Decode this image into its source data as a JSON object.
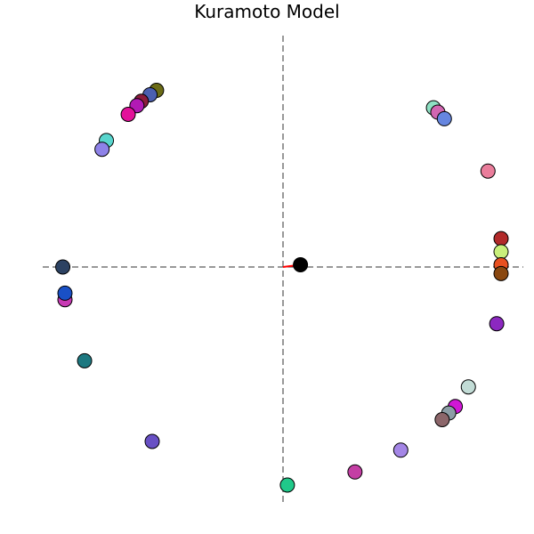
{
  "chart_data": {
    "type": "scatter",
    "title": "Kuramoto Model",
    "xlabel": "",
    "ylabel": "",
    "xlim": [
      -1.12,
      1.12
    ],
    "ylim": [
      -1.12,
      1.12
    ],
    "grid": false,
    "axes_visible": false,
    "crosshair": {
      "style": "dashed",
      "color": "#333333"
    },
    "order_parameter": {
      "x": 0.08,
      "y": 0.01,
      "color": "#000000",
      "vector_color": "#ff0000"
    },
    "oscillators": [
      {
        "x": -0.58,
        "y": 0.81,
        "color": "#6b6b16"
      },
      {
        "x": -0.61,
        "y": 0.79,
        "color": "#4b5fb0"
      },
      {
        "x": -0.65,
        "y": 0.76,
        "color": "#8c1c3c"
      },
      {
        "x": -0.67,
        "y": 0.74,
        "color": "#b21ab5"
      },
      {
        "x": -0.71,
        "y": 0.7,
        "color": "#e3119a"
      },
      {
        "x": -0.81,
        "y": 0.58,
        "color": "#58d5cd"
      },
      {
        "x": -0.83,
        "y": 0.54,
        "color": "#8e82e8"
      },
      {
        "x": 0.69,
        "y": 0.73,
        "color": "#8ee0c3"
      },
      {
        "x": 0.71,
        "y": 0.71,
        "color": "#d166b1"
      },
      {
        "x": 0.74,
        "y": 0.68,
        "color": "#6686e0"
      },
      {
        "x": 0.94,
        "y": 0.44,
        "color": "#ea7d9b"
      },
      {
        "x": 1.0,
        "y": 0.13,
        "color": "#b22a2a"
      },
      {
        "x": 1.0,
        "y": 0.07,
        "color": "#c9f07b"
      },
      {
        "x": 1.0,
        "y": 0.01,
        "color": "#e85020"
      },
      {
        "x": 1.0,
        "y": -0.03,
        "color": "#8a4810"
      },
      {
        "x": 0.98,
        "y": -0.26,
        "color": "#8c28c0"
      },
      {
        "x": 0.85,
        "y": -0.55,
        "color": "#c2dcd6"
      },
      {
        "x": 0.79,
        "y": -0.64,
        "color": "#d017d6"
      },
      {
        "x": 0.76,
        "y": -0.67,
        "color": "#8c9ea6"
      },
      {
        "x": 0.73,
        "y": -0.7,
        "color": "#8c666a"
      },
      {
        "x": 0.54,
        "y": -0.84,
        "color": "#a486e6"
      },
      {
        "x": 0.33,
        "y": -0.94,
        "color": "#c43ea4"
      },
      {
        "x": 0.02,
        "y": -1.0,
        "color": "#20c98a"
      },
      {
        "x": -0.6,
        "y": -0.8,
        "color": "#6850c4"
      },
      {
        "x": -0.91,
        "y": -0.43,
        "color": "#1d7880"
      },
      {
        "x": -1.0,
        "y": -0.15,
        "color": "#c83ab4"
      },
      {
        "x": -1.0,
        "y": -0.12,
        "color": "#1950c6"
      },
      {
        "x": -1.01,
        "y": 0.0,
        "color": "#2c4262"
      }
    ]
  }
}
